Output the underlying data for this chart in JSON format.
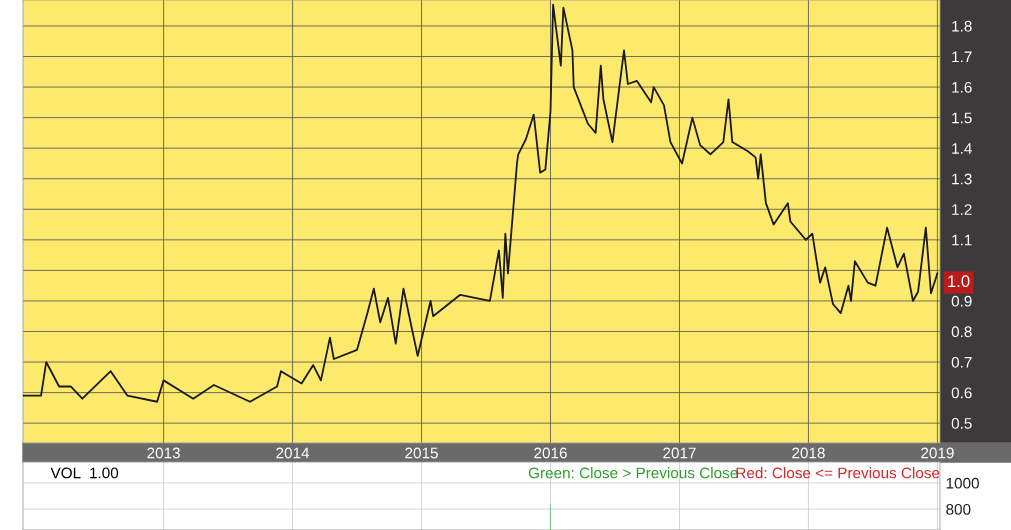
{
  "chart_data": [
    {
      "type": "line",
      "x": [
        2011.91,
        2012.05,
        2012.09,
        2012.19,
        2012.28,
        2012.37,
        2012.59,
        2012.72,
        2012.95,
        2013.0,
        2013.23,
        2013.39,
        2013.67,
        2013.88,
        2013.91,
        2014.07,
        2014.16,
        2014.22,
        2014.29,
        2014.32,
        2014.5,
        2014.58,
        2014.63,
        2014.68,
        2014.74,
        2014.8,
        2014.86,
        2014.97,
        2015.07,
        2015.09,
        2015.3,
        2015.53,
        2015.6,
        2015.63,
        2015.65,
        2015.67,
        2015.74,
        2015.75,
        2015.81,
        2015.87,
        2015.92,
        2015.96,
        2016.0,
        2016.02,
        2016.08,
        2016.1,
        2016.17,
        2016.18,
        2016.29,
        2016.35,
        2016.39,
        2016.41,
        2016.48,
        2016.57,
        2016.6,
        2016.67,
        2016.78,
        2016.8,
        2016.88,
        2016.93,
        2017.02,
        2017.1,
        2017.16,
        2017.24,
        2017.34,
        2017.38,
        2017.41,
        2017.53,
        2017.59,
        2017.61,
        2017.63,
        2017.67,
        2017.73,
        2017.84,
        2017.86,
        2017.98,
        2018.03,
        2018.09,
        2018.13,
        2018.19,
        2018.25,
        2018.31,
        2018.33,
        2018.36,
        2018.46,
        2018.52,
        2018.61,
        2018.69,
        2018.74,
        2018.81,
        2018.85,
        2018.91,
        2018.95,
        2019.0
      ],
      "series": [
        {
          "color": "#1a1a1a",
          "values": [
            0.59,
            0.59,
            0.7,
            0.62,
            0.62,
            0.58,
            0.67,
            0.59,
            0.57,
            0.64,
            0.58,
            0.625,
            0.57,
            0.62,
            0.67,
            0.63,
            0.69,
            0.64,
            0.78,
            0.71,
            0.74,
            0.86,
            0.94,
            0.83,
            0.91,
            0.76,
            0.94,
            0.72,
            0.9,
            0.85,
            0.92,
            0.9,
            1.065,
            0.91,
            1.12,
            0.99,
            1.35,
            1.38,
            1.43,
            1.51,
            1.32,
            1.33,
            1.52,
            1.87,
            1.67,
            1.86,
            1.72,
            1.6,
            1.48,
            1.45,
            1.67,
            1.56,
            1.42,
            1.72,
            1.61,
            1.62,
            1.55,
            1.6,
            1.54,
            1.42,
            1.35,
            1.5,
            1.41,
            1.38,
            1.42,
            1.56,
            1.42,
            1.39,
            1.37,
            1.3,
            1.38,
            1.22,
            1.15,
            1.22,
            1.16,
            1.1,
            1.12,
            0.96,
            1.01,
            0.89,
            0.86,
            0.95,
            0.9,
            1.03,
            0.96,
            0.95,
            1.14,
            1.01,
            1.055,
            0.9,
            0.93,
            1.14,
            0.925,
            0.99
          ]
        }
      ],
      "xlim": [
        2011.91,
        2019.02
      ],
      "xticks": [
        2013,
        2014,
        2015,
        2016,
        2017,
        2018,
        2019
      ],
      "ylim": [
        0.435,
        1.885
      ],
      "yticks": [
        {
          "value": 0.5,
          "label": "0.5"
        },
        {
          "value": 0.6,
          "label": "0.6"
        },
        {
          "value": 0.7,
          "label": "0.7"
        },
        {
          "value": 0.8,
          "label": "0.8"
        },
        {
          "value": 0.9,
          "label": "0.9"
        },
        {
          "value": 1.0,
          "label": null
        },
        {
          "value": 1.1,
          "label": "1.1"
        },
        {
          "value": 1.2,
          "label": "1.2"
        },
        {
          "value": 1.3,
          "label": "1.3"
        },
        {
          "value": 1.4,
          "label": "1.4"
        },
        {
          "value": 1.5,
          "label": "1.5"
        },
        {
          "value": 1.6,
          "label": "1.6"
        },
        {
          "value": 1.7,
          "label": "1.7"
        },
        {
          "value": 1.8,
          "label": "1.8"
        }
      ],
      "grid": true,
      "marker": "none",
      "line_style": "solid",
      "annotations": [
        {
          "text": "1.0",
          "x": 2019.02,
          "y": 0.96
        }
      ]
    },
    {
      "type": "bar",
      "x": [
        2016.0
      ],
      "series": [
        {
          "color": "#22a822",
          "values": [
            830
          ]
        }
      ],
      "xlim": [
        2011.91,
        2019.02
      ],
      "xticks": [
        {
          "value": 2013,
          "label": null
        },
        {
          "value": 2014,
          "label": null
        },
        {
          "value": 2015,
          "label": null
        },
        {
          "value": 2016,
          "label": null
        },
        {
          "value": 2017,
          "label": null
        },
        {
          "value": 2018,
          "label": null
        },
        {
          "value": 2019,
          "label": null
        }
      ],
      "ylim": [
        640,
        1160
      ],
      "yticks": [
        800,
        1000
      ],
      "grid": true,
      "tick_labels": "y",
      "annotations": [
        "VOL  1.00",
        "Green: Close > Previous Close",
        "Red: Close <= Previous Close"
      ]
    }
  ]
}
